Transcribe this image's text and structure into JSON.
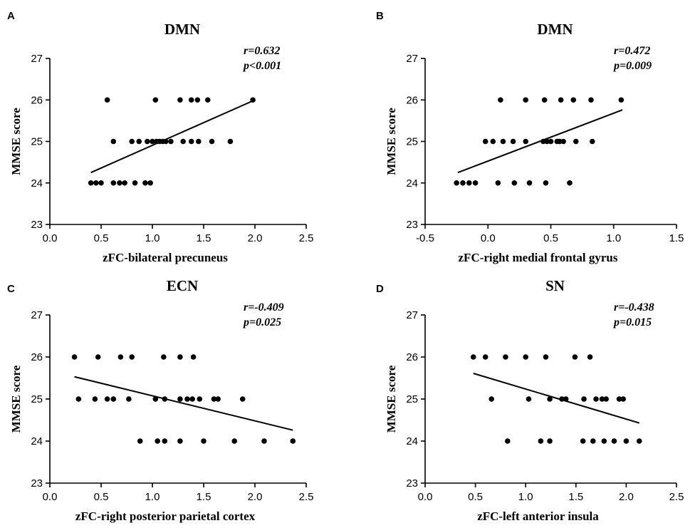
{
  "chart_data": [
    {
      "type": "scatter",
      "panel": "A",
      "title": "DMN",
      "xlabel": "zFC-bilateral precuneus",
      "ylabel": "MMSE score",
      "xlim": [
        0.0,
        2.5
      ],
      "ylim": [
        23,
        27
      ],
      "xticks": [
        "0.0",
        "0.5",
        "1.0",
        "1.5",
        "2.0",
        "2.5"
      ],
      "yticks": [
        "23",
        "24",
        "25",
        "26",
        "27"
      ],
      "stats": [
        "r=0.632",
        "p<0.001"
      ],
      "fit": [
        [
          0.4,
          24.25
        ],
        [
          2.0,
          26.0
        ]
      ],
      "points": [
        [
          0.4,
          24
        ],
        [
          0.45,
          24
        ],
        [
          0.5,
          24
        ],
        [
          0.62,
          24
        ],
        [
          0.68,
          24
        ],
        [
          0.73,
          24
        ],
        [
          0.83,
          24
        ],
        [
          0.93,
          24
        ],
        [
          0.98,
          24
        ],
        [
          0.62,
          25
        ],
        [
          0.8,
          25
        ],
        [
          0.87,
          25
        ],
        [
          0.95,
          25
        ],
        [
          1.0,
          25
        ],
        [
          1.04,
          25
        ],
        [
          1.07,
          25
        ],
        [
          1.1,
          25
        ],
        [
          1.13,
          25
        ],
        [
          1.18,
          25
        ],
        [
          1.3,
          25
        ],
        [
          1.38,
          25
        ],
        [
          1.45,
          25
        ],
        [
          1.58,
          25
        ],
        [
          1.76,
          25
        ],
        [
          0.56,
          26
        ],
        [
          1.03,
          26
        ],
        [
          1.27,
          26
        ],
        [
          1.38,
          26
        ],
        [
          1.44,
          26
        ],
        [
          1.54,
          26
        ],
        [
          1.98,
          26
        ]
      ]
    },
    {
      "type": "scatter",
      "panel": "B",
      "title": "DMN",
      "xlabel": "zFC-right medial frontal gyrus",
      "ylabel": "MMSE score",
      "xlim": [
        -0.5,
        1.5
      ],
      "ylim": [
        23,
        27
      ],
      "xticks": [
        "-0.5",
        "0.0",
        "0.5",
        "1.0",
        "1.5"
      ],
      "yticks": [
        "23",
        "24",
        "25",
        "26",
        "27"
      ],
      "stats": [
        "r=0.472",
        "p=0.009"
      ],
      "fit": [
        [
          -0.24,
          24.25
        ],
        [
          1.07,
          25.76
        ]
      ],
      "points": [
        [
          -0.25,
          24
        ],
        [
          -0.2,
          24
        ],
        [
          -0.15,
          24
        ],
        [
          -0.1,
          24
        ],
        [
          0.08,
          24
        ],
        [
          0.21,
          24
        ],
        [
          0.33,
          24
        ],
        [
          0.46,
          24
        ],
        [
          0.65,
          24
        ],
        [
          -0.02,
          25
        ],
        [
          0.04,
          25
        ],
        [
          0.12,
          25
        ],
        [
          0.2,
          25
        ],
        [
          0.3,
          25
        ],
        [
          0.44,
          25
        ],
        [
          0.47,
          25
        ],
        [
          0.5,
          25
        ],
        [
          0.55,
          25
        ],
        [
          0.57,
          25
        ],
        [
          0.6,
          25
        ],
        [
          0.7,
          25
        ],
        [
          0.83,
          25
        ],
        [
          0.1,
          26
        ],
        [
          0.3,
          26
        ],
        [
          0.45,
          26
        ],
        [
          0.58,
          26
        ],
        [
          0.68,
          26
        ],
        [
          0.82,
          26
        ],
        [
          1.06,
          26
        ]
      ]
    },
    {
      "type": "scatter",
      "panel": "C",
      "title": "ECN",
      "xlabel": "zFC-right posterior parietal cortex",
      "ylabel": "MMSE score",
      "xlim": [
        0.0,
        2.5
      ],
      "ylim": [
        23,
        27
      ],
      "xticks": [
        "0.0",
        "0.5",
        "1.0",
        "1.5",
        "2.0",
        "2.5"
      ],
      "yticks": [
        "23",
        "24",
        "25",
        "26",
        "27"
      ],
      "stats": [
        "r=-0.409",
        "p=0.025"
      ],
      "fit": [
        [
          0.24,
          25.53
        ],
        [
          2.37,
          24.26
        ]
      ],
      "points": [
        [
          0.88,
          24
        ],
        [
          1.05,
          24
        ],
        [
          1.12,
          24
        ],
        [
          1.27,
          24
        ],
        [
          1.5,
          24
        ],
        [
          1.8,
          24
        ],
        [
          2.09,
          24
        ],
        [
          2.37,
          24
        ],
        [
          0.28,
          25
        ],
        [
          0.44,
          25
        ],
        [
          0.56,
          25
        ],
        [
          0.62,
          25
        ],
        [
          0.77,
          25
        ],
        [
          1.03,
          25
        ],
        [
          1.12,
          25
        ],
        [
          1.27,
          25
        ],
        [
          1.34,
          25
        ],
        [
          1.39,
          25
        ],
        [
          1.46,
          25
        ],
        [
          1.6,
          25
        ],
        [
          1.64,
          25
        ],
        [
          1.88,
          25
        ],
        [
          0.24,
          26
        ],
        [
          0.47,
          26
        ],
        [
          0.69,
          26
        ],
        [
          0.8,
          26
        ],
        [
          1.11,
          26
        ],
        [
          1.27,
          26
        ],
        [
          1.4,
          26
        ]
      ]
    },
    {
      "type": "scatter",
      "panel": "D",
      "title": "SN",
      "xlabel": "zFC-left anterior insula",
      "ylabel": "MMSE score",
      "xlim": [
        0.0,
        2.5
      ],
      "ylim": [
        23,
        27
      ],
      "xticks": [
        "0.0",
        "0.5",
        "1.0",
        "1.5",
        "2.0",
        "2.5"
      ],
      "yticks": [
        "23",
        "24",
        "25",
        "26",
        "27"
      ],
      "stats": [
        "r=-0.438",
        "p=0.015"
      ],
      "fit": [
        [
          0.48,
          25.61
        ],
        [
          2.13,
          24.43
        ]
      ],
      "points": [
        [
          0.82,
          24
        ],
        [
          1.15,
          24
        ],
        [
          1.24,
          24
        ],
        [
          1.57,
          24
        ],
        [
          1.67,
          24
        ],
        [
          1.78,
          24
        ],
        [
          1.88,
          24
        ],
        [
          2.0,
          24
        ],
        [
          2.13,
          24
        ],
        [
          0.66,
          25
        ],
        [
          1.03,
          25
        ],
        [
          1.24,
          25
        ],
        [
          1.36,
          25
        ],
        [
          1.4,
          25
        ],
        [
          1.58,
          25
        ],
        [
          1.7,
          25
        ],
        [
          1.76,
          25
        ],
        [
          1.8,
          25
        ],
        [
          1.93,
          25
        ],
        [
          1.97,
          25
        ],
        [
          0.48,
          26
        ],
        [
          0.6,
          26
        ],
        [
          0.8,
          26
        ],
        [
          1.0,
          26
        ],
        [
          1.2,
          26
        ],
        [
          1.49,
          26
        ],
        [
          1.64,
          26
        ]
      ]
    }
  ]
}
